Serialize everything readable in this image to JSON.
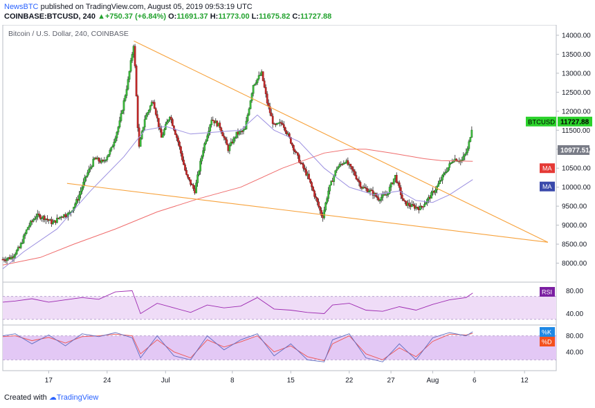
{
  "header": {
    "author": "NewsBTC",
    "published_text": "published on TradingView.com, August 05, 2019 09:53:19 UTC",
    "symbol": "COINBASE:BTCUSD, 240",
    "change_arrow": "▲",
    "change": "+750.37 (+6.84%)",
    "o_label": "O:",
    "o_value": "11691.37",
    "h_label": "H:",
    "h_value": "11773.00",
    "l_label": "L:",
    "l_value": "11675.82",
    "c_label": "C:",
    "c_value": "11727.88",
    "last_value": "11727.88"
  },
  "footer": {
    "created_with": "Created with",
    "brand": "TradingView"
  },
  "colors": {
    "up": "#26a69a",
    "down": "#ef5350",
    "ma_fast": "#9b8fe0",
    "ma_slow": "#ef6b6b",
    "trend": "#f7a13a",
    "rsi": "#9c27b0",
    "k": "#5c6bc0",
    "d": "#ef5350",
    "band": "#efdcf7",
    "stoch_band": "#e3c8f5"
  },
  "chart_data": {
    "type": "candlestick",
    "title": "Bitcoin / U.S. Dollar, 240, COINBASE",
    "ylim": [
      7500,
      14200
    ],
    "y_ticks": [
      "14000.00",
      "13500.00",
      "13000.00",
      "12500.00",
      "12000.00",
      "11500.00",
      "11000.00",
      "10500.00",
      "10000.00",
      "9500.00",
      "9000.00",
      "8500.00",
      "8000.00"
    ],
    "y_tick_values": [
      14000,
      13500,
      13000,
      12500,
      12000,
      11500,
      11000,
      10500,
      10000,
      9500,
      9000,
      8500,
      8000
    ],
    "x_ticks": [
      "17",
      "24",
      "Jul",
      "8",
      "15",
      "22",
      "27",
      "Aug",
      "6",
      "12"
    ],
    "x_tick_days": [
      17,
      24,
      31,
      39,
      46,
      53,
      58,
      63,
      68,
      74
    ],
    "x_range_days": [
      11.5,
      77.8
    ],
    "price_path": [
      [
        11.5,
        8100
      ],
      [
        12.5,
        8150
      ],
      [
        13.5,
        8400
      ],
      [
        14.5,
        8950
      ],
      [
        15.5,
        9250
      ],
      [
        16.5,
        9200
      ],
      [
        17.5,
        9050
      ],
      [
        18.5,
        9250
      ],
      [
        19.5,
        9300
      ],
      [
        20.5,
        9700
      ],
      [
        21.5,
        10300
      ],
      [
        22.5,
        10750
      ],
      [
        23.5,
        10650
      ],
      [
        24.5,
        11000
      ],
      [
        25.5,
        11700
      ],
      [
        26.5,
        12800
      ],
      [
        27.2,
        13800
      ],
      [
        27.8,
        11000
      ],
      [
        28.5,
        11800
      ],
      [
        29.5,
        12300
      ],
      [
        30.5,
        11300
      ],
      [
        31.5,
        11900
      ],
      [
        32.5,
        11200
      ],
      [
        33.5,
        10300
      ],
      [
        34.5,
        9900
      ],
      [
        35.5,
        11000
      ],
      [
        36.5,
        11800
      ],
      [
        37.5,
        11600
      ],
      [
        38.5,
        11000
      ],
      [
        39.5,
        11400
      ],
      [
        40.5,
        11500
      ],
      [
        41.5,
        12700
      ],
      [
        42.5,
        13000
      ],
      [
        43.2,
        12200
      ],
      [
        44,
        11600
      ],
      [
        45,
        11700
      ],
      [
        46,
        11200
      ],
      [
        47,
        10700
      ],
      [
        48,
        10300
      ],
      [
        49,
        9700
      ],
      [
        49.8,
        9200
      ],
      [
        50.5,
        9900
      ],
      [
        51.5,
        10500
      ],
      [
        52.5,
        10700
      ],
      [
        53.5,
        10400
      ],
      [
        54.5,
        10000
      ],
      [
        55.5,
        9900
      ],
      [
        56.5,
        9700
      ],
      [
        57.5,
        9800
      ],
      [
        58.5,
        10300
      ],
      [
        59.5,
        9600
      ],
      [
        60.5,
        9500
      ],
      [
        61.5,
        9450
      ],
      [
        62.5,
        9700
      ],
      [
        63.5,
        10000
      ],
      [
        64.5,
        10400
      ],
      [
        65.5,
        10750
      ],
      [
        66.5,
        10700
      ],
      [
        67.2,
        11000
      ],
      [
        67.8,
        11700
      ]
    ],
    "ma_slow_path": [
      [
        11.5,
        7950
      ],
      [
        16,
        8150
      ],
      [
        20,
        8500
      ],
      [
        25,
        8900
      ],
      [
        30,
        9350
      ],
      [
        35,
        9700
      ],
      [
        40,
        10000
      ],
      [
        45,
        10500
      ],
      [
        50,
        10900
      ],
      [
        53,
        11000
      ],
      [
        55,
        11000
      ],
      [
        58,
        10900
      ],
      [
        62,
        10750
      ],
      [
        64,
        10700
      ],
      [
        67.8,
        10680
      ]
    ],
    "ma_fast_path": [
      [
        11.5,
        7850
      ],
      [
        14,
        8300
      ],
      [
        18,
        8900
      ],
      [
        22,
        9900
      ],
      [
        26,
        10800
      ],
      [
        28.5,
        11500
      ],
      [
        31,
        11600
      ],
      [
        34,
        11400
      ],
      [
        37,
        11450
      ],
      [
        40,
        11500
      ],
      [
        42,
        11900
      ],
      [
        44,
        11500
      ],
      [
        47,
        11200
      ],
      [
        50,
        10500
      ],
      [
        53,
        10000
      ],
      [
        56,
        9800
      ],
      [
        59,
        9900
      ],
      [
        61,
        9650
      ],
      [
        63,
        9600
      ],
      [
        65,
        9800
      ],
      [
        67.8,
        10200
      ]
    ],
    "trendlines": [
      {
        "from": [
          27.2,
          13850
        ],
        "to": [
          76.8,
          8550
        ]
      },
      {
        "from": [
          19.2,
          10100
        ],
        "to": [
          76.8,
          8550
        ]
      }
    ],
    "last_price_label": "BTCUSD",
    "last_price": "11727.88",
    "last_price_value": 11727.88,
    "ma_slow_label": "10977.51",
    "ma_slow_label_value": 10977.51,
    "ma_label": "MA",
    "ma_label_value_a": 10500,
    "ma_label_value_b": 10200,
    "rsi": {
      "label": "RSI",
      "ticks": [
        "80.00",
        "40.00"
      ],
      "tick_values": [
        80,
        40
      ],
      "ylim": [
        20,
        95
      ],
      "band": [
        30,
        70
      ],
      "path": [
        [
          11.5,
          60
        ],
        [
          13,
          62
        ],
        [
          15,
          66
        ],
        [
          17,
          60
        ],
        [
          19,
          64
        ],
        [
          21,
          68
        ],
        [
          23,
          65
        ],
        [
          25,
          78
        ],
        [
          27,
          80
        ],
        [
          28,
          40
        ],
        [
          30,
          58
        ],
        [
          32,
          50
        ],
        [
          34,
          42
        ],
        [
          36,
          55
        ],
        [
          38,
          50
        ],
        [
          40,
          53
        ],
        [
          42,
          68
        ],
        [
          44,
          48
        ],
        [
          46,
          46
        ],
        [
          48,
          42
        ],
        [
          50,
          40
        ],
        [
          51,
          55
        ],
        [
          53,
          58
        ],
        [
          55,
          46
        ],
        [
          57,
          44
        ],
        [
          59,
          52
        ],
        [
          61,
          46
        ],
        [
          63,
          56
        ],
        [
          65,
          64
        ],
        [
          67,
          68
        ],
        [
          67.8,
          76
        ]
      ]
    },
    "stoch": {
      "k_label": "%K",
      "d_label": "%D",
      "ticks": [
        "80.00",
        "40.00"
      ],
      "tick_values": [
        80,
        40
      ],
      "ylim": [
        0,
        100
      ],
      "band": [
        20,
        80
      ],
      "k_path": [
        [
          11.5,
          80
        ],
        [
          13,
          85
        ],
        [
          15,
          60
        ],
        [
          17,
          82
        ],
        [
          19,
          55
        ],
        [
          21,
          85
        ],
        [
          23,
          78
        ],
        [
          25,
          88
        ],
        [
          27,
          75
        ],
        [
          28,
          25
        ],
        [
          30,
          80
        ],
        [
          32,
          30
        ],
        [
          34,
          20
        ],
        [
          36,
          80
        ],
        [
          38,
          45
        ],
        [
          40,
          70
        ],
        [
          42,
          85
        ],
        [
          44,
          30
        ],
        [
          46,
          60
        ],
        [
          48,
          20
        ],
        [
          50,
          15
        ],
        [
          51,
          70
        ],
        [
          53,
          85
        ],
        [
          55,
          25
        ],
        [
          57,
          15
        ],
        [
          59,
          60
        ],
        [
          61,
          20
        ],
        [
          63,
          75
        ],
        [
          65,
          88
        ],
        [
          67,
          80
        ],
        [
          67.8,
          90
        ]
      ],
      "d_path": [
        [
          11.5,
          78
        ],
        [
          13,
          80
        ],
        [
          15,
          68
        ],
        [
          17,
          76
        ],
        [
          19,
          62
        ],
        [
          21,
          78
        ],
        [
          23,
          80
        ],
        [
          25,
          84
        ],
        [
          27,
          80
        ],
        [
          28,
          35
        ],
        [
          30,
          70
        ],
        [
          32,
          40
        ],
        [
          34,
          25
        ],
        [
          36,
          70
        ],
        [
          38,
          52
        ],
        [
          40,
          65
        ],
        [
          42,
          80
        ],
        [
          44,
          40
        ],
        [
          46,
          55
        ],
        [
          48,
          28
        ],
        [
          50,
          18
        ],
        [
          51,
          60
        ],
        [
          53,
          80
        ],
        [
          55,
          35
        ],
        [
          57,
          20
        ],
        [
          59,
          50
        ],
        [
          61,
          28
        ],
        [
          63,
          66
        ],
        [
          65,
          84
        ],
        [
          67,
          82
        ],
        [
          67.8,
          86
        ]
      ]
    },
    "grid": false,
    "legend": "none"
  }
}
